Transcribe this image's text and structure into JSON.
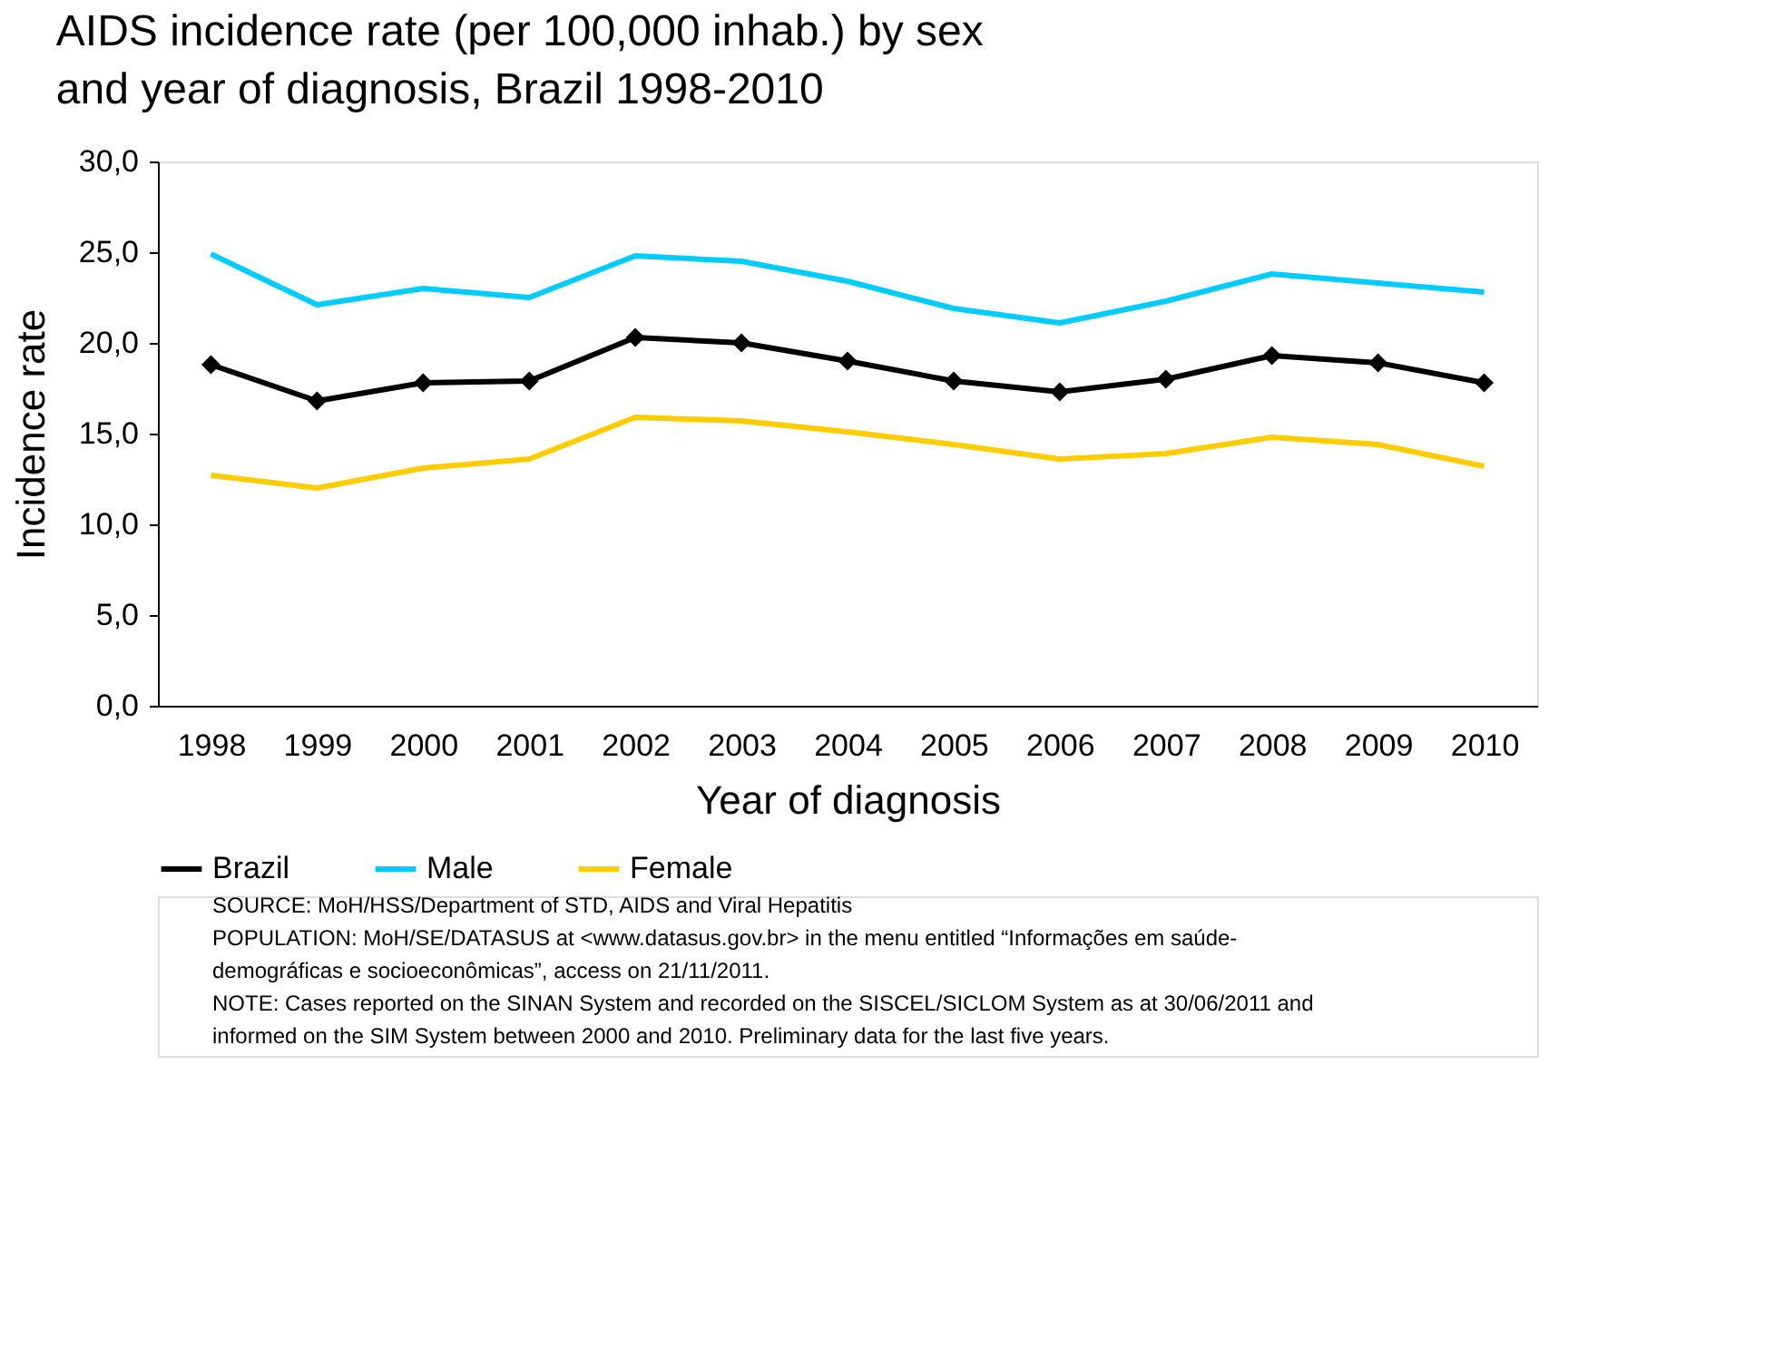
{
  "chart_data": {
    "type": "line",
    "title": "AIDS incidence rate (per 100,000 inhab.) by sex and year of diagnosis, Brazil 1998-2010",
    "xlabel": "Year of diagnosis",
    "ylabel": "Incidence rate",
    "categories": [
      "1998",
      "1999",
      "2000",
      "2001",
      "2002",
      "2003",
      "2004",
      "2005",
      "2006",
      "2007",
      "2008",
      "2009",
      "2010"
    ],
    "series": [
      {
        "name": "Brazil",
        "color": "#000000",
        "marker": "diamond",
        "values": [
          18.8,
          16.8,
          17.8,
          17.9,
          20.3,
          20.0,
          19.0,
          17.9,
          17.3,
          18.0,
          19.3,
          18.9,
          17.8
        ]
      },
      {
        "name": "Male",
        "color": "#00ccff",
        "marker": "none",
        "values": [
          24.9,
          22.1,
          23.0,
          22.5,
          24.8,
          24.5,
          23.4,
          21.9,
          21.1,
          22.3,
          23.8,
          23.3,
          22.8
        ]
      },
      {
        "name": "Female",
        "color": "#ffcc00",
        "marker": "none",
        "values": [
          12.7,
          12.0,
          13.1,
          13.6,
          15.9,
          15.7,
          15.1,
          14.4,
          13.6,
          13.9,
          14.8,
          14.4,
          13.2
        ]
      }
    ],
    "ylim": [
      0,
      30
    ],
    "yticks": [
      {
        "value": 0,
        "label": "0,0"
      },
      {
        "value": 5,
        "label": "5,0"
      },
      {
        "value": 10,
        "label": "10,0"
      },
      {
        "value": 15,
        "label": "15,0"
      },
      {
        "value": 20,
        "label": "20,0"
      },
      {
        "value": 25,
        "label": "25,0"
      },
      {
        "value": 30,
        "label": "30,0"
      }
    ],
    "grid": false,
    "legend": "bottom",
    "line_style": "solid",
    "annotations": [
      "SOURCE: MoH/HSS/Department of STD, AIDS and Viral Hepatitis",
      "POPULATION: MoH/SE/DATASUS at <www.datasus.gov.br> in the menu entitled “Informações em saúde-",
      "demográficas e socioeconômicas”, access on 21/11/2011.",
      "NOTE: Cases reported on the SINAN System and recorded on the SISCEL/SICLOM System as at 30/06/2011 and",
      "informed on the SIM System between 2000 and 2010. Preliminary data for the last five years."
    ]
  }
}
